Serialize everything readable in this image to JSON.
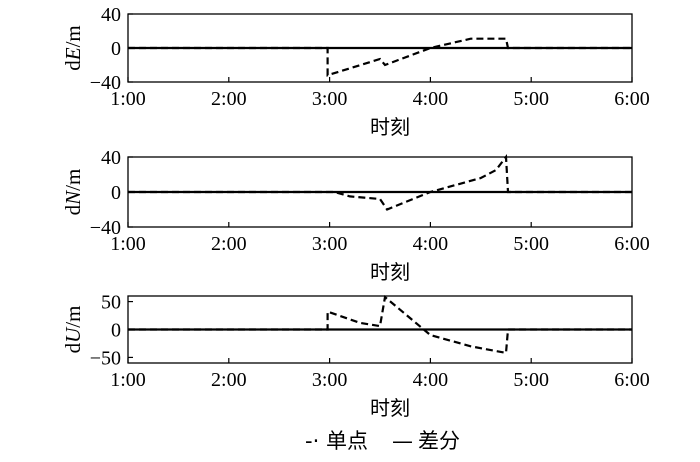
{
  "chart_data": [
    {
      "type": "line",
      "ylabel_prefix": "d",
      "ylabel_var": "E",
      "ylabel_unit": "/m",
      "xlabel": "时刻",
      "xlim": [
        1,
        6
      ],
      "ylim": [
        -40,
        40
      ],
      "yticks": [
        -40,
        0,
        40
      ],
      "xticks": [
        1,
        2,
        3,
        4,
        5,
        6
      ],
      "xtick_labels": [
        "1:00",
        "2:00",
        "3:00",
        "4:00",
        "5:00",
        "6:00"
      ],
      "series": [
        {
          "name": "单点",
          "style": "dashed",
          "points": [
            [
              1.0,
              0
            ],
            [
              2.98,
              0
            ],
            [
              2.98,
              -32
            ],
            [
              3.5,
              -13
            ],
            [
              3.55,
              -20
            ],
            [
              4.0,
              0
            ],
            [
              4.4,
              11
            ],
            [
              4.5,
              11
            ],
            [
              4.75,
              11
            ],
            [
              4.77,
              0
            ],
            [
              6.0,
              0
            ]
          ]
        },
        {
          "name": "差分",
          "style": "solid",
          "points": [
            [
              1.0,
              0
            ],
            [
              6.0,
              0
            ]
          ]
        }
      ]
    },
    {
      "type": "line",
      "ylabel_prefix": "d",
      "ylabel_var": "N",
      "ylabel_unit": "/m",
      "xlabel": "时刻",
      "xlim": [
        1,
        6
      ],
      "ylim": [
        -40,
        40
      ],
      "yticks": [
        -40,
        0,
        40
      ],
      "xticks": [
        1,
        2,
        3,
        4,
        5,
        6
      ],
      "xtick_labels": [
        "1:00",
        "2:00",
        "3:00",
        "4:00",
        "5:00",
        "6:00"
      ],
      "series": [
        {
          "name": "单点",
          "style": "dashed",
          "points": [
            [
              1.0,
              0
            ],
            [
              3.05,
              0
            ],
            [
              3.2,
              -5
            ],
            [
              3.5,
              -8
            ],
            [
              3.57,
              -20
            ],
            [
              4.0,
              0
            ],
            [
              4.5,
              16
            ],
            [
              4.65,
              25
            ],
            [
              4.75,
              40
            ],
            [
              4.77,
              0
            ],
            [
              6.0,
              0
            ]
          ]
        },
        {
          "name": "差分",
          "style": "solid",
          "points": [
            [
              1.0,
              0
            ],
            [
              6.0,
              0
            ]
          ]
        }
      ]
    },
    {
      "type": "line",
      "ylabel_prefix": "d",
      "ylabel_var": "U",
      "ylabel_unit": "/m",
      "xlabel": "时刻",
      "xlim": [
        1,
        6
      ],
      "ylim": [
        -60,
        60
      ],
      "yticks": [
        -50,
        0,
        50
      ],
      "xticks": [
        1,
        2,
        3,
        4,
        5,
        6
      ],
      "xtick_labels": [
        "1:00",
        "2:00",
        "3:00",
        "4:00",
        "5:00",
        "6:00"
      ],
      "series": [
        {
          "name": "单点",
          "style": "dashed",
          "points": [
            [
              1.0,
              0
            ],
            [
              2.98,
              0
            ],
            [
              2.98,
              32
            ],
            [
              3.3,
              12
            ],
            [
              3.5,
              6
            ],
            [
              3.55,
              58
            ],
            [
              4.0,
              -10
            ],
            [
              4.4,
              -30
            ],
            [
              4.75,
              -42
            ],
            [
              4.77,
              0
            ],
            [
              6.0,
              0
            ]
          ]
        },
        {
          "name": "差分",
          "style": "solid",
          "points": [
            [
              1.0,
              0
            ],
            [
              6.0,
              0
            ]
          ]
        }
      ]
    }
  ],
  "legend": {
    "items": [
      {
        "symbol": "-·",
        "label": "单点"
      },
      {
        "symbol": "—",
        "label": "差分"
      }
    ]
  }
}
